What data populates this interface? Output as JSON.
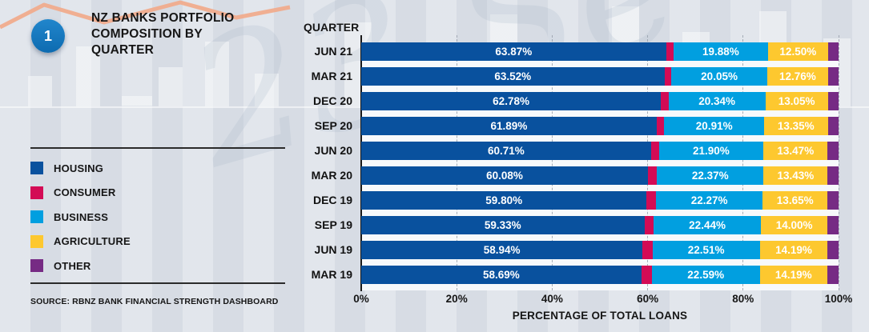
{
  "panel": {
    "badge_number": "1",
    "badge_color": "#0e74b9",
    "title": "NZ BANKS PORTFOLIO COMPOSITION BY QUARTER",
    "source": "SOURCE: RBNZ BANK FINANCIAL STRENGTH DASHBOARD"
  },
  "legend": {
    "items": [
      {
        "label": "HOUSING",
        "color": "#09519e"
      },
      {
        "label": "CONSUMER",
        "color": "#d30b55"
      },
      {
        "label": "BUSINESS",
        "color": "#019fe0"
      },
      {
        "label": "AGRICULTURE",
        "color": "#fdc82f"
      },
      {
        "label": "OTHER",
        "color": "#762b84"
      }
    ]
  },
  "decor": {
    "watermark": "23 Se",
    "background": "#dce1e9",
    "accent_line": "#f2a888"
  },
  "chart_data": {
    "type": "bar",
    "orientation": "horizontal-stacked",
    "column_header": "QUARTER",
    "categories": [
      "JUN 21",
      "MAR 21",
      "DEC 20",
      "SEP 20",
      "JUN 20",
      "MAR 20",
      "DEC 19",
      "SEP 19",
      "JUN 19",
      "MAR 19"
    ],
    "series": [
      {
        "name": "HOUSING",
        "color": "#09519e",
        "labels_shown": true,
        "values": [
          63.87,
          63.52,
          62.78,
          61.89,
          60.71,
          60.08,
          59.8,
          59.33,
          58.94,
          58.69
        ]
      },
      {
        "name": "CONSUMER",
        "color": "#d30b55",
        "labels_shown": false,
        "estimated": true,
        "values": [
          1.5,
          1.47,
          1.58,
          1.6,
          1.65,
          1.85,
          2.0,
          1.95,
          2.06,
          2.2
        ]
      },
      {
        "name": "BUSINESS",
        "color": "#019fe0",
        "labels_shown": true,
        "values": [
          19.88,
          20.05,
          20.34,
          20.91,
          21.9,
          22.37,
          22.27,
          22.44,
          22.51,
          22.59
        ]
      },
      {
        "name": "AGRICULTURE",
        "color": "#fdc82f",
        "labels_shown": true,
        "values": [
          12.5,
          12.76,
          13.05,
          13.35,
          13.47,
          13.43,
          13.65,
          14.0,
          14.19,
          14.19
        ]
      },
      {
        "name": "OTHER",
        "color": "#762b84",
        "labels_shown": false,
        "estimated": true,
        "values": [
          2.25,
          2.2,
          2.25,
          2.25,
          2.27,
          2.27,
          2.28,
          2.28,
          2.3,
          2.33
        ]
      }
    ],
    "value_label_color": "#ffffff",
    "xlabel": "PERCENTAGE OF TOTAL LOANS",
    "xticks": [
      "0%",
      "20%",
      "40%",
      "60%",
      "80%",
      "100%"
    ],
    "xlim": [
      0,
      100
    ],
    "grid": "dashed-vertical"
  }
}
